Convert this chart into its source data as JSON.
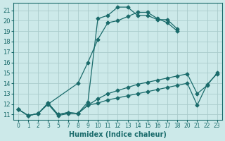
{
  "xlabel": "Humidex (Indice chaleur)",
  "bg_color": "#cce9e9",
  "grid_color": "#aacccc",
  "line_color": "#1a6b6b",
  "ylim": [
    10.5,
    21.7
  ],
  "yticks": [
    11,
    12,
    13,
    14,
    15,
    16,
    17,
    18,
    19,
    20,
    21
  ],
  "xlabels": [
    "0",
    "1",
    "2",
    "3",
    "5",
    "7",
    "8",
    "9",
    "10",
    "11",
    "12",
    "13",
    "14",
    "15",
    "16",
    "17",
    "18",
    "20",
    "21",
    "22",
    "23"
  ],
  "series": [
    {
      "xi": [
        0,
        1,
        2,
        3,
        4,
        5,
        6,
        7,
        8,
        9,
        10,
        11,
        12,
        13,
        14,
        15,
        16
      ],
      "y": [
        11.5,
        10.9,
        11.1,
        12.0,
        10.9,
        11.1,
        11.1,
        12.2,
        20.2,
        20.5,
        21.3,
        21.3,
        20.5,
        20.5,
        20.1,
        20.1,
        19.2
      ]
    },
    {
      "xi": [
        3,
        6,
        7,
        8,
        9,
        10,
        11,
        12,
        13,
        14,
        15,
        16
      ],
      "y": [
        12.0,
        14.0,
        16.0,
        18.2,
        19.8,
        20.0,
        20.4,
        20.8,
        20.8,
        20.2,
        19.8,
        19.0
      ]
    },
    {
      "xi": [
        0,
        1,
        2,
        3,
        4,
        5,
        6,
        7,
        8,
        9,
        10,
        11,
        12,
        13,
        14,
        15,
        16,
        17,
        18,
        19,
        20
      ],
      "y": [
        11.5,
        10.9,
        11.1,
        12.1,
        11.0,
        11.2,
        11.1,
        11.9,
        12.5,
        13.0,
        13.3,
        13.6,
        13.9,
        14.1,
        14.3,
        14.5,
        14.7,
        14.9,
        13.0,
        13.8,
        15.0
      ]
    },
    {
      "xi": [
        0,
        1,
        2,
        3,
        4,
        5,
        6,
        7,
        8,
        9,
        10,
        11,
        12,
        13,
        14,
        15,
        16,
        17,
        18,
        19,
        20
      ],
      "y": [
        11.5,
        10.9,
        11.1,
        12.1,
        11.0,
        11.2,
        11.1,
        11.9,
        12.1,
        12.4,
        12.6,
        12.8,
        13.0,
        13.2,
        13.4,
        13.6,
        13.8,
        14.0,
        11.9,
        13.9,
        14.9
      ]
    }
  ]
}
